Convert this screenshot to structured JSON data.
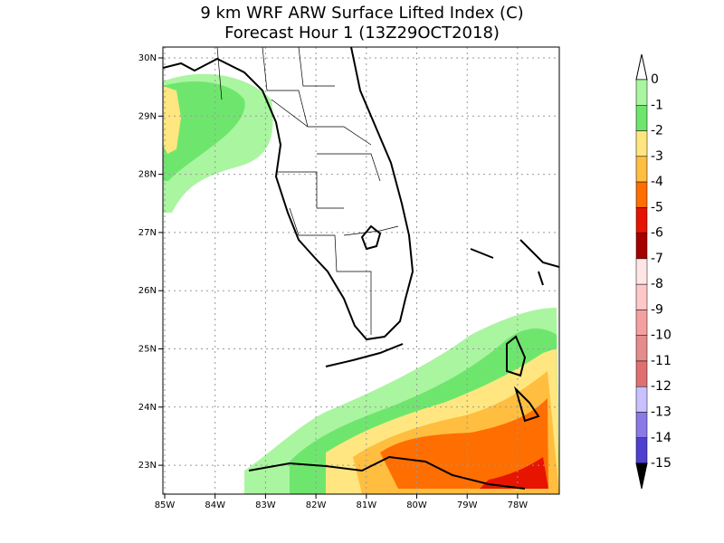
{
  "title": [
    "9 km WRF ARW Surface Lifted Index (C)",
    "Forecast Hour 1 (13Z29OCT2018)"
  ],
  "lat_ticks": [
    "30N",
    "29N",
    "28N",
    "27N",
    "26N",
    "25N",
    "24N",
    "23N"
  ],
  "lon_ticks": [
    "85W",
    "84W",
    "83W",
    "82W",
    "81W",
    "80W",
    "79W",
    "78W"
  ],
  "colorbar": {
    "labels": [
      0,
      -1,
      -2,
      -3,
      -4,
      -5,
      -6,
      -7,
      -8,
      -9,
      -10,
      -11,
      -12,
      -13,
      -14,
      -15
    ],
    "colors": [
      "#aaf5a0",
      "#6ee66e",
      "#ffe680",
      "#ffbe40",
      "#ff6e00",
      "#e61400",
      "#a50000",
      "#ffe6e6",
      "#ffc8c8",
      "#f5a0a0",
      "#e68c8c",
      "#e07070",
      "#c8c0ff",
      "#8a7ae6",
      "#5040d0"
    ],
    "over_color": "#ffffff",
    "under_color": "#000000"
  }
}
